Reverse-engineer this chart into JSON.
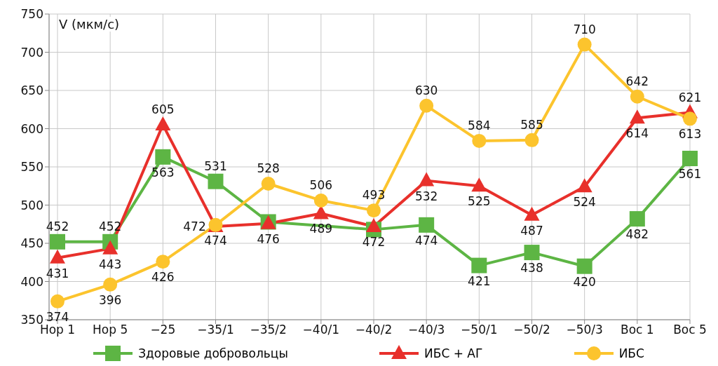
{
  "chart_data": {
    "type": "line",
    "ylabel": "V (мкм/с)",
    "categories": [
      "Нор 1",
      "Нор 5",
      "−25",
      "−35/1",
      "−35/2",
      "−40/1",
      "−40/2",
      "−40/3",
      "−50/1",
      "−50/2",
      "−50/3",
      "Вос 1",
      "Вос 5"
    ],
    "series": [
      {
        "name": "Здоровые добровольцы",
        "color": "#5db544",
        "marker": "square",
        "values": [
          452,
          452,
          563,
          531,
          478,
          null,
          468,
          474,
          421,
          438,
          420,
          482,
          561
        ],
        "value_labels": [
          "452",
          "452",
          "563",
          "531",
          null,
          null,
          null,
          "474",
          "421",
          "438",
          "420",
          "482",
          "561"
        ]
      },
      {
        "name": "ИБС + АГ",
        "color": "#e8302b",
        "marker": "triangle",
        "values": [
          431,
          443,
          605,
          472,
          476,
          489,
          472,
          532,
          525,
          487,
          524,
          614,
          621
        ],
        "value_labels": [
          "431",
          "443",
          "605",
          "472",
          "476",
          "489",
          "472",
          "532",
          "525",
          "487",
          "524",
          "614",
          "621"
        ]
      },
      {
        "name": "ИБС",
        "color": "#fcc42d",
        "marker": "circle",
        "values": [
          374,
          396,
          426,
          474,
          528,
          506,
          493,
          630,
          584,
          585,
          710,
          642,
          613
        ],
        "value_labels": [
          "374",
          "396",
          "426",
          "474",
          "528",
          "506",
          "493",
          "630",
          "584",
          "585",
          "710",
          "642",
          "613"
        ]
      }
    ],
    "ylim": [
      350,
      750
    ],
    "yticks": [
      350,
      400,
      450,
      500,
      550,
      600,
      650,
      700,
      750
    ],
    "grid": true,
    "legend": "bottom"
  }
}
